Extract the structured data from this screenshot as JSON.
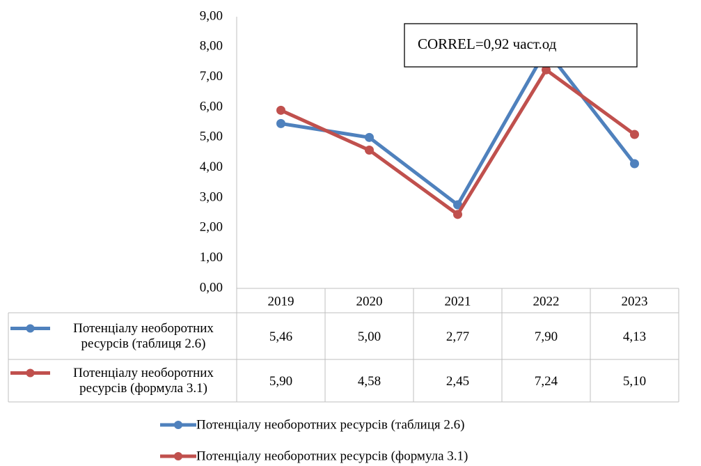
{
  "chart_data": {
    "type": "line",
    "annotation": "CORREL=0,92 част.од",
    "categories": [
      "2019",
      "2020",
      "2021",
      "2022",
      "2023"
    ],
    "series": [
      {
        "name": "Потенціалу необоротних ресурсів (таблиця 2.6)",
        "color": "#4f81bd",
        "values": [
          5.46,
          5.0,
          2.77,
          7.9,
          4.13
        ],
        "value_labels": [
          "5,46",
          "5,00",
          "2,77",
          "7,90",
          "4,13"
        ]
      },
      {
        "name": "Потенціалу необоротних ресурсів (формула 3.1)",
        "color": "#c0504d",
        "values": [
          5.9,
          4.58,
          2.45,
          7.24,
          5.1
        ],
        "value_labels": [
          "5,90",
          "4,58",
          "2,45",
          "7,24",
          "5,10"
        ]
      }
    ],
    "ylim": [
      0,
      9
    ],
    "yticks": [
      {
        "value": 0,
        "label": "0,00"
      },
      {
        "value": 1,
        "label": "1,00"
      },
      {
        "value": 2,
        "label": "2,00"
      },
      {
        "value": 3,
        "label": "3,00"
      },
      {
        "value": 4,
        "label": "4,00"
      },
      {
        "value": 5,
        "label": "5,00"
      },
      {
        "value": 6,
        "label": "6,00"
      },
      {
        "value": 7,
        "label": "7,00"
      },
      {
        "value": 8,
        "label": "8,00"
      },
      {
        "value": 9,
        "label": "9,00"
      }
    ],
    "grid": false
  }
}
